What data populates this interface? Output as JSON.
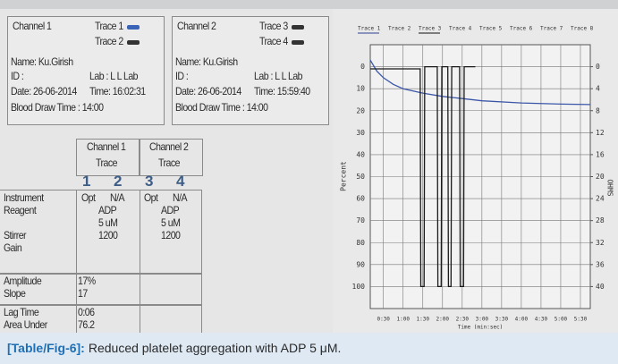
{
  "panel": {
    "channels": [
      {
        "title": "Channel 1",
        "traces": [
          "Trace 1",
          "Trace 2"
        ],
        "name": "Name: Ku.Girish",
        "id": "ID :",
        "lab": "Lab : L L Lab",
        "date": "Date: 26-06-2014",
        "time": "Time: 16:02:31",
        "blood": "Blood Draw Time : 14:00"
      },
      {
        "title": "Channel 2",
        "traces": [
          "Trace 3",
          "Trace 4"
        ],
        "name": "Name: Ku.Girish",
        "id": "ID :",
        "lab": "Lab : L L Lab",
        "date": "Date: 26-06-2014",
        "time": "Time: 15:59:40",
        "blood": "Blood Draw Time : 14:00"
      }
    ]
  },
  "table": {
    "channel_headers": [
      "Channel 1",
      "Channel 2"
    ],
    "trace_headers": [
      "Trace",
      "Trace"
    ],
    "trace_numbers": [
      "1",
      "2",
      "3",
      "4"
    ],
    "blocks": [
      {
        "labels": [
          "Instrument",
          "Reagent",
          "Stirrer",
          "Gain"
        ],
        "ch1": [
          "Opt",
          "N/A",
          "ADP",
          "5 uM",
          "1200"
        ],
        "ch2": [
          "Opt",
          "N/A",
          "ADP",
          "5 uM",
          "1200"
        ]
      },
      {
        "labels": [
          "Amplitude",
          "Slope"
        ],
        "ch1": [
          "17%",
          "17"
        ]
      },
      {
        "labels": [
          "Lag Time",
          "Area Under"
        ],
        "ch1": [
          "0:06",
          "76.2"
        ]
      }
    ]
  },
  "chart_data": {
    "type": "line",
    "xlabel": "Time (min:sec)",
    "ylabel": "Percent",
    "y2label": "OHMS",
    "legend": [
      "Trace 1",
      "Trace 2",
      "Trace 3",
      "Trace 4",
      "Trace 5",
      "Trace 6",
      "Trace 7",
      "Trace 8"
    ],
    "legend_colors": [
      "#2a3f8f",
      "#9a9a9a",
      "#111111",
      "#9a9a9a",
      "#9a9a9a",
      "#9a9a9a",
      "#9a9a9a",
      "#9a9a9a"
    ],
    "xlim": [
      10,
      345
    ],
    "ylim": [
      -10,
      110
    ],
    "y2lim": [
      -4,
      44
    ],
    "xticks": [
      {
        "value": 30,
        "label": "0:30"
      },
      {
        "value": 60,
        "label": "1:00"
      },
      {
        "value": 90,
        "label": "1:30"
      },
      {
        "value": 120,
        "label": "2:00"
      },
      {
        "value": 150,
        "label": "2:30"
      },
      {
        "value": 180,
        "label": "3:00"
      },
      {
        "value": 210,
        "label": "3:30"
      },
      {
        "value": 240,
        "label": "4:00"
      },
      {
        "value": 270,
        "label": "4:30"
      },
      {
        "value": 300,
        "label": "5:00"
      },
      {
        "value": 330,
        "label": "5:30"
      }
    ],
    "yticks": [
      0,
      10,
      20,
      30,
      40,
      50,
      60,
      70,
      80,
      90,
      100
    ],
    "y2ticks": [
      0,
      4,
      8,
      12,
      16,
      20,
      24,
      28,
      32,
      36,
      40
    ],
    "grid": true,
    "series": [
      {
        "color": "#3b57a8",
        "x": [
          10,
          20,
          30,
          45,
          60,
          90,
          120,
          150,
          180,
          240,
          300,
          345
        ],
        "values": [
          -3,
          2,
          5,
          8,
          10,
          12,
          13.5,
          14.5,
          15.5,
          16.5,
          17,
          17.2
        ]
      },
      {
        "color": "#1a1a1a",
        "x": [
          10,
          86,
          87,
          92,
          93,
          112,
          113,
          118,
          119,
          128,
          129,
          133,
          134,
          146,
          147,
          152,
          153,
          170
        ],
        "values": [
          1,
          1,
          100,
          100,
          0,
          0,
          100,
          100,
          0,
          0,
          100,
          100,
          0,
          0,
          100,
          100,
          0,
          0
        ]
      }
    ]
  },
  "caption": {
    "tag": "[Table/Fig-6]:",
    "text": "Reduced platelet aggregation with ADP 5 μM."
  }
}
